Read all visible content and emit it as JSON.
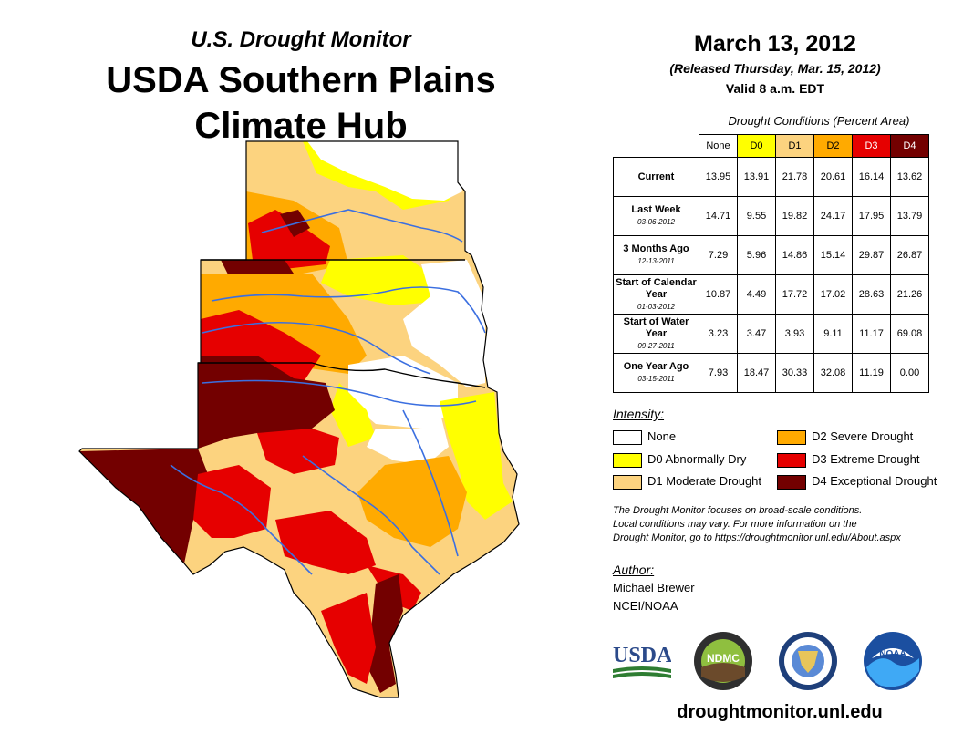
{
  "header": {
    "subtitle": "U.S. Drought Monitor",
    "title_line1": "USDA Southern Plains",
    "title_line2": "Climate Hub",
    "date": "March 13, 2012",
    "released": "(Released Thursday, Mar. 15, 2012)",
    "valid": "Valid 8 a.m. EDT"
  },
  "table": {
    "title": "Drought Conditions (Percent Area)",
    "columns": [
      "None",
      "D0",
      "D1",
      "D2",
      "D3",
      "D4"
    ],
    "column_colors": [
      "#ffffff",
      "#ffff00",
      "#fcd37f",
      "#ffaa00",
      "#e60000",
      "#730000"
    ],
    "column_text_colors": [
      "#000000",
      "#000000",
      "#000000",
      "#000000",
      "#ffffff",
      "#ffffff"
    ],
    "rows": [
      {
        "label": "Current",
        "date": "",
        "values": [
          "13.95",
          "13.91",
          "21.78",
          "20.61",
          "16.14",
          "13.62"
        ]
      },
      {
        "label": "Last Week",
        "date": "03-06-2012",
        "values": [
          "14.71",
          "9.55",
          "19.82",
          "24.17",
          "17.95",
          "13.79"
        ]
      },
      {
        "label": "3 Months Ago",
        "date": "12-13-2011",
        "values": [
          "7.29",
          "5.96",
          "14.86",
          "15.14",
          "29.87",
          "26.87"
        ]
      },
      {
        "label": "Start of Calendar Year",
        "date": "01-03-2012",
        "values": [
          "10.87",
          "4.49",
          "17.72",
          "17.02",
          "28.63",
          "21.26"
        ]
      },
      {
        "label": "Start of Water Year",
        "date": "09-27-2011",
        "values": [
          "3.23",
          "3.47",
          "3.93",
          "9.11",
          "11.17",
          "69.08"
        ]
      },
      {
        "label": "One Year Ago",
        "date": "03-15-2011",
        "values": [
          "7.93",
          "18.47",
          "30.33",
          "32.08",
          "11.19",
          "0.00"
        ]
      }
    ]
  },
  "legend": {
    "title": "Intensity:",
    "items": [
      {
        "label": "None",
        "color": "#ffffff"
      },
      {
        "label": "D0 Abnormally Dry",
        "color": "#ffff00"
      },
      {
        "label": "D1 Moderate Drought",
        "color": "#fcd37f"
      },
      {
        "label": "D2 Severe Drought",
        "color": "#ffaa00"
      },
      {
        "label": "D3 Extreme Drought",
        "color": "#e60000"
      },
      {
        "label": "D4 Exceptional Drought",
        "color": "#730000"
      }
    ]
  },
  "note": {
    "line1": "The Drought Monitor focuses on broad-scale conditions.",
    "line2": "Local conditions may vary. For more information on the",
    "line3": "Drought Monitor, go to https://droughtmonitor.unl.edu/About.aspx"
  },
  "author": {
    "title": "Author:",
    "name": "Michael Brewer",
    "org": "NCEI/NOAA"
  },
  "logos": {
    "usda": "USDA",
    "ndmc": "NDMC",
    "noaa": "NOAA"
  },
  "footer_url": "droughtmonitor.unl.edu",
  "map_colors": {
    "none": "#ffffff",
    "d0": "#ffff00",
    "d1": "#fcd37f",
    "d2": "#ffaa00",
    "d3": "#e60000",
    "d4": "#730000",
    "river": "#3b6fe0",
    "border": "#000000"
  }
}
